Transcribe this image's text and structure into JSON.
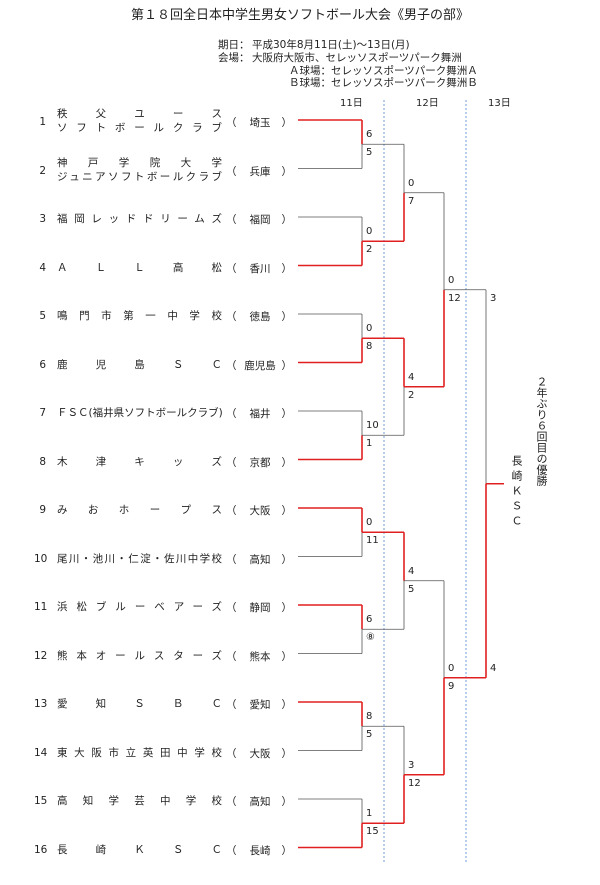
{
  "title": "第１８回全日本中学生男女ソフトボール大会《男子の部》",
  "info": {
    "date_label": "期日：",
    "date_value": "平成30年8月11日(土)～13日(月)",
    "venue_label": "会場：",
    "venue_value": "大阪府大阪市、セレッソスポーツパーク舞洲",
    "field_a": "Ａ球場：セレッソスポーツパーク舞洲Ａ",
    "field_b": "Ｂ球場：セレッソスポーツパーク舞洲Ｂ"
  },
  "days": [
    "11日",
    "12日",
    "13日"
  ],
  "teams": [
    {
      "num": "1",
      "name": [
        "秩　父　ユ　ー　ス",
        "ソフトボールクラブ"
      ],
      "pref": "埼玉"
    },
    {
      "num": "2",
      "name": [
        "神　戸　学　院　大　学",
        "ジュニアソフトボールクラブ"
      ],
      "pref": "兵庫"
    },
    {
      "num": "3",
      "name": [
        "福岡レッドドリームズ"
      ],
      "pref": "福岡"
    },
    {
      "num": "4",
      "name": [
        "Ａ　Ｌ　Ｌ　高　松"
      ],
      "pref": "香川"
    },
    {
      "num": "5",
      "name": [
        "鳴門市第一中学校"
      ],
      "pref": "徳島"
    },
    {
      "num": "6",
      "name": [
        "鹿　児　島　Ｓ　Ｃ"
      ],
      "pref": "鹿児島"
    },
    {
      "num": "7",
      "name": [
        "ＦＳＣ(福井県ソフトボールクラブ)"
      ],
      "pref": "福井"
    },
    {
      "num": "8",
      "name": [
        "木　津　キ　ッ　ズ"
      ],
      "pref": "京都"
    },
    {
      "num": "9",
      "name": [
        "み　お　ホ　ー　プ　ス"
      ],
      "pref": "大阪"
    },
    {
      "num": "10",
      "name": [
        "尾川・池川・仁淀・佐川中学校"
      ],
      "pref": "高知"
    },
    {
      "num": "11",
      "name": [
        "浜松ブルーベアーズ"
      ],
      "pref": "静岡"
    },
    {
      "num": "12",
      "name": [
        "熊本オールスターズ"
      ],
      "pref": "熊本"
    },
    {
      "num": "13",
      "name": [
        "愛　知　Ｓ　Ｂ　Ｃ"
      ],
      "pref": "愛知"
    },
    {
      "num": "14",
      "name": [
        "東大阪市立英田中学校"
      ],
      "pref": "大阪"
    },
    {
      "num": "15",
      "name": [
        "高　知　学　芸　中　学　校"
      ],
      "pref": "高知"
    },
    {
      "num": "16",
      "name": [
        "長　崎　Ｋ　Ｓ　Ｃ"
      ],
      "pref": "長崎"
    }
  ],
  "pref_paren_open": "（",
  "pref_paren_close": "）",
  "scores": {
    "r1": [
      "6",
      "5",
      "0",
      "2",
      "0",
      "8",
      "10",
      "1",
      "0",
      "11",
      "6",
      "⑧",
      "8",
      "5",
      "1",
      "15"
    ],
    "r2": [
      "0",
      "7",
      "4",
      "2",
      "4",
      "5",
      "3",
      "12"
    ],
    "qf": [
      "0",
      "12",
      "0",
      "9"
    ],
    "sf": [
      "3",
      "4"
    ]
  },
  "champion_note": "２年ぶり６回目の優勝",
  "champion_name": "長崎ＫＳＣ",
  "colors": {
    "win": "#e02020",
    "lose": "#555555",
    "divider": "#6f9fd8"
  }
}
